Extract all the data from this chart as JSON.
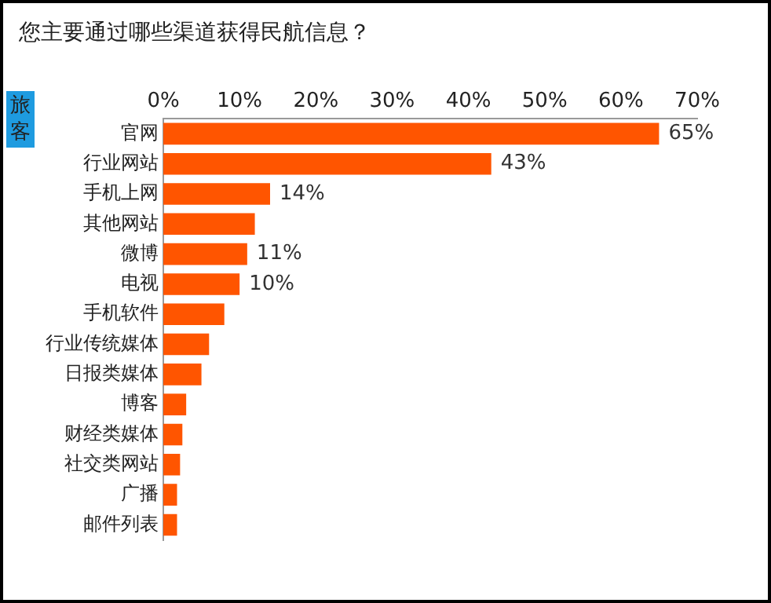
{
  "chart_data": {
    "type": "bar",
    "orientation": "horizontal",
    "title": "您主要通过哪些渠道获得民航信息？",
    "ylabel": "旅客",
    "categories": [
      "官网",
      "行业网站",
      "手机上网",
      "其他网站",
      "微博",
      "电视",
      "手机软件",
      "行业传统媒体",
      "日报类媒体",
      "博客",
      "财经类媒体",
      "社交类网站",
      "广播",
      "邮件列表"
    ],
    "values": [
      65,
      43,
      14,
      12,
      11,
      10,
      8,
      6,
      5,
      3,
      2.5,
      2.2,
      1.8,
      1.8
    ],
    "value_labels": [
      "65%",
      "43%",
      "14%",
      null,
      "11%",
      "10%",
      null,
      null,
      null,
      null,
      null,
      null,
      null,
      null
    ],
    "color": "#ff5500",
    "xlim": [
      0,
      70
    ],
    "xticks": [
      {
        "value": 0,
        "label": "0%"
      },
      {
        "value": 10,
        "label": "10%"
      },
      {
        "value": 20,
        "label": "20%"
      },
      {
        "value": 30,
        "label": "30%"
      },
      {
        "value": 40,
        "label": "40%"
      },
      {
        "value": 50,
        "label": "50%"
      },
      {
        "value": 60,
        "label": "60%"
      },
      {
        "value": 70,
        "label": "70%"
      }
    ],
    "grid": false,
    "legend": false
  }
}
